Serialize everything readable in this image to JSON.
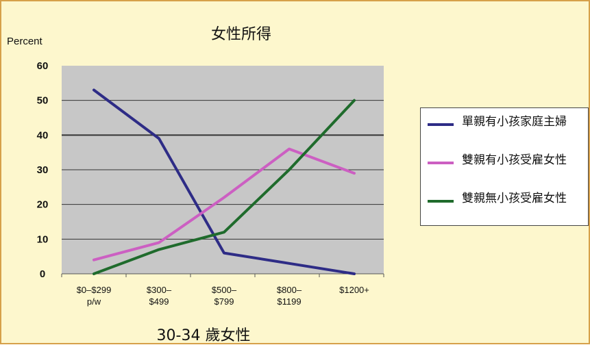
{
  "chart_data": {
    "type": "line",
    "title": "女性所得",
    "subtitle": "30-34 歲女性",
    "ylabel": "Percent",
    "ylim": [
      0,
      60
    ],
    "yticks": [
      0,
      10,
      20,
      30,
      40,
      50,
      60
    ],
    "categories": [
      [
        "$0–$299",
        "p/w"
      ],
      [
        "$300–",
        "$499"
      ],
      [
        "$500–",
        "$799"
      ],
      [
        "$800–",
        "$1199"
      ],
      [
        "$1200+"
      ]
    ],
    "series": [
      {
        "name": "單親有小孩家庭主婦",
        "color": "#2e2c86",
        "values": [
          53,
          39,
          6,
          3,
          0
        ]
      },
      {
        "name": "雙親有小孩受雇女性",
        "color": "#cc5fc2",
        "values": [
          4,
          9,
          22,
          36,
          29
        ]
      },
      {
        "name": "雙親無小孩受雇女性",
        "color": "#1f6b2c",
        "values": [
          0,
          7,
          12,
          30,
          50
        ]
      }
    ],
    "grid": true,
    "plot_background": "#c7c7c7",
    "legend_position": "right"
  }
}
